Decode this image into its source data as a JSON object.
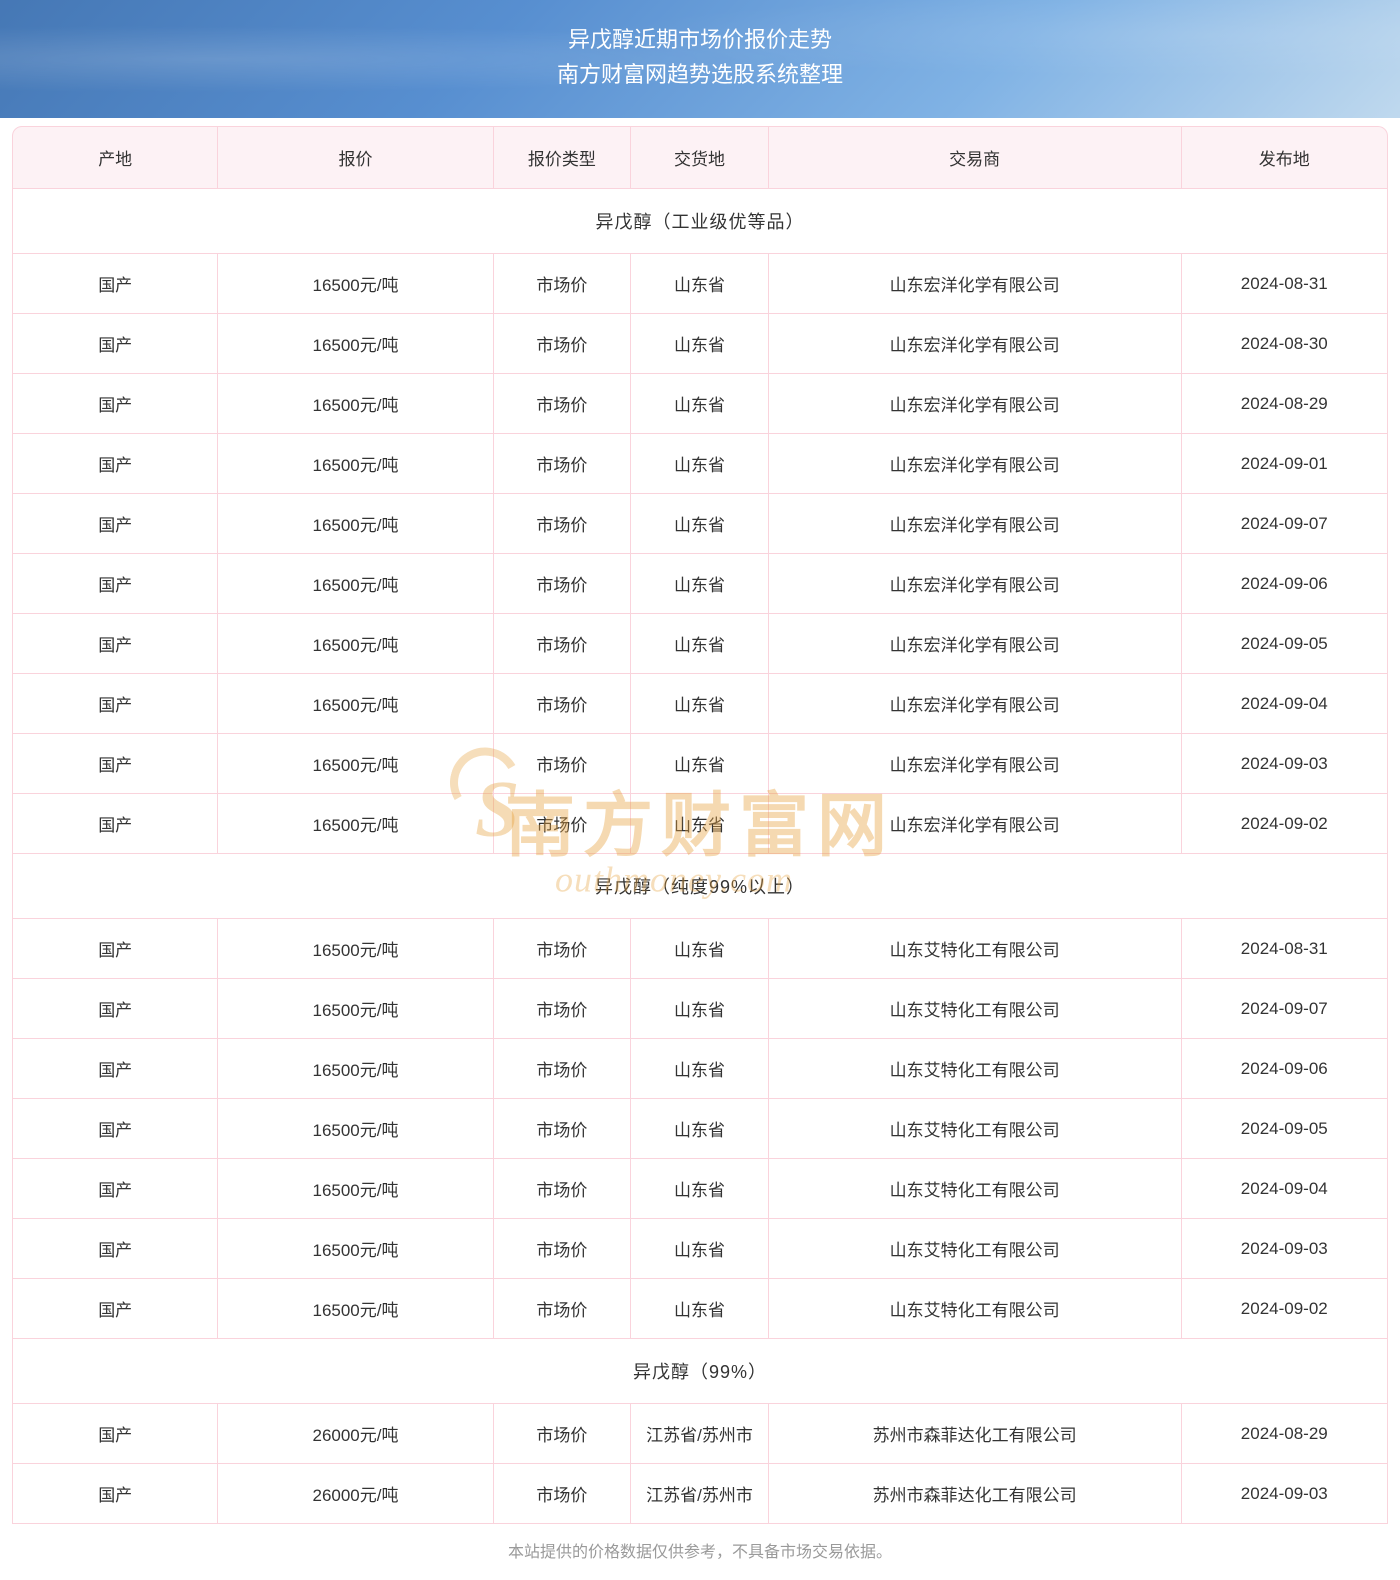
{
  "header": {
    "title_line1": "异戊醇近期市场价报价走势",
    "title_line2": "南方财富网趋势选股系统整理"
  },
  "watermark": {
    "main": "南方财富网",
    "sub": "outhmoney.com"
  },
  "columns": [
    {
      "key": "origin",
      "label": "产地",
      "class": "col-origin"
    },
    {
      "key": "price",
      "label": "报价",
      "class": "col-price"
    },
    {
      "key": "price_type",
      "label": "报价类型",
      "class": "col-pricetype"
    },
    {
      "key": "delivery",
      "label": "交货地",
      "class": "col-delivery"
    },
    {
      "key": "trader",
      "label": "交易商",
      "class": "col-trader"
    },
    {
      "key": "date",
      "label": "发布地",
      "class": "col-date"
    }
  ],
  "sections": [
    {
      "title": "异戊醇（工业级优等品）",
      "rows": [
        {
          "origin": "国产",
          "price": "16500元/吨",
          "price_type": "市场价",
          "delivery": "山东省",
          "trader": "山东宏洋化学有限公司",
          "date": "2024-08-31"
        },
        {
          "origin": "国产",
          "price": "16500元/吨",
          "price_type": "市场价",
          "delivery": "山东省",
          "trader": "山东宏洋化学有限公司",
          "date": "2024-08-30"
        },
        {
          "origin": "国产",
          "price": "16500元/吨",
          "price_type": "市场价",
          "delivery": "山东省",
          "trader": "山东宏洋化学有限公司",
          "date": "2024-08-29"
        },
        {
          "origin": "国产",
          "price": "16500元/吨",
          "price_type": "市场价",
          "delivery": "山东省",
          "trader": "山东宏洋化学有限公司",
          "date": "2024-09-01"
        },
        {
          "origin": "国产",
          "price": "16500元/吨",
          "price_type": "市场价",
          "delivery": "山东省",
          "trader": "山东宏洋化学有限公司",
          "date": "2024-09-07"
        },
        {
          "origin": "国产",
          "price": "16500元/吨",
          "price_type": "市场价",
          "delivery": "山东省",
          "trader": "山东宏洋化学有限公司",
          "date": "2024-09-06"
        },
        {
          "origin": "国产",
          "price": "16500元/吨",
          "price_type": "市场价",
          "delivery": "山东省",
          "trader": "山东宏洋化学有限公司",
          "date": "2024-09-05"
        },
        {
          "origin": "国产",
          "price": "16500元/吨",
          "price_type": "市场价",
          "delivery": "山东省",
          "trader": "山东宏洋化学有限公司",
          "date": "2024-09-04"
        },
        {
          "origin": "国产",
          "price": "16500元/吨",
          "price_type": "市场价",
          "delivery": "山东省",
          "trader": "山东宏洋化学有限公司",
          "date": "2024-09-03"
        },
        {
          "origin": "国产",
          "price": "16500元/吨",
          "price_type": "市场价",
          "delivery": "山东省",
          "trader": "山东宏洋化学有限公司",
          "date": "2024-09-02"
        }
      ]
    },
    {
      "title": "异戊醇（纯度99%以上）",
      "rows": [
        {
          "origin": "国产",
          "price": "16500元/吨",
          "price_type": "市场价",
          "delivery": "山东省",
          "trader": "山东艾特化工有限公司",
          "date": "2024-08-31"
        },
        {
          "origin": "国产",
          "price": "16500元/吨",
          "price_type": "市场价",
          "delivery": "山东省",
          "trader": "山东艾特化工有限公司",
          "date": "2024-09-07"
        },
        {
          "origin": "国产",
          "price": "16500元/吨",
          "price_type": "市场价",
          "delivery": "山东省",
          "trader": "山东艾特化工有限公司",
          "date": "2024-09-06"
        },
        {
          "origin": "国产",
          "price": "16500元/吨",
          "price_type": "市场价",
          "delivery": "山东省",
          "trader": "山东艾特化工有限公司",
          "date": "2024-09-05"
        },
        {
          "origin": "国产",
          "price": "16500元/吨",
          "price_type": "市场价",
          "delivery": "山东省",
          "trader": "山东艾特化工有限公司",
          "date": "2024-09-04"
        },
        {
          "origin": "国产",
          "price": "16500元/吨",
          "price_type": "市场价",
          "delivery": "山东省",
          "trader": "山东艾特化工有限公司",
          "date": "2024-09-03"
        },
        {
          "origin": "国产",
          "price": "16500元/吨",
          "price_type": "市场价",
          "delivery": "山东省",
          "trader": "山东艾特化工有限公司",
          "date": "2024-09-02"
        }
      ]
    },
    {
      "title": "异戊醇（99%）",
      "rows": [
        {
          "origin": "国产",
          "price": "26000元/吨",
          "price_type": "市场价",
          "delivery": "江苏省/苏州市",
          "trader": "苏州市森菲达化工有限公司",
          "date": "2024-08-29"
        },
        {
          "origin": "国产",
          "price": "26000元/吨",
          "price_type": "市场价",
          "delivery": "江苏省/苏州市",
          "trader": "苏州市森菲达化工有限公司",
          "date": "2024-09-03"
        }
      ]
    }
  ],
  "footer_note": "本站提供的价格数据仅供参考，不具备市场交易依据。",
  "styling": {
    "header_bg_colors": [
      "#2560a8",
      "#3a7bc8",
      "#5090d8",
      "#6aa5e0",
      "#85bde8"
    ],
    "header_text_color": "#ffffff",
    "header_title_fontsize": 22,
    "th_bg_color": "#fdf2f5",
    "border_color": "#fad3dc",
    "text_color": "#333333",
    "cell_fontsize": 17,
    "section_fontsize": 18,
    "footer_color": "#9a9a9a",
    "footer_fontsize": 16,
    "watermark_color": "rgba(230,160,60,0.4)",
    "watermark_main_fontsize": 70,
    "watermark_sub_fontsize": 36,
    "border_radius": 10
  }
}
